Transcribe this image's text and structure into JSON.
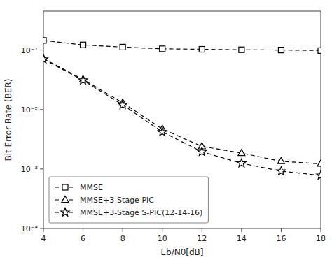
{
  "chart_data": {
    "type": "line",
    "x": [
      4,
      6,
      8,
      10,
      12,
      14,
      16,
      18
    ],
    "series": [
      {
        "name": "MMSE",
        "color": "#000000",
        "marker": "square",
        "line_style": "dashed",
        "values": [
          0.145,
          0.122,
          0.112,
          0.105,
          0.103,
          0.101,
          0.1,
          0.098
        ]
      },
      {
        "name": "MMSE+3-Stage PIC",
        "color": "#000000",
        "marker": "triangle",
        "line_style": "dashed",
        "values": [
          0.072,
          0.032,
          0.013,
          0.0047,
          0.0024,
          0.00185,
          0.00135,
          0.00122
        ]
      },
      {
        "name": "MMSE+3-Stage S-PIC(12-14-16)",
        "color": "#000000",
        "marker": "star",
        "line_style": "dashed",
        "values": [
          0.07,
          0.031,
          0.012,
          0.0042,
          0.00195,
          0.00125,
          0.00092,
          0.00078
        ]
      }
    ],
    "xlabel": "Eb/N0[dB]",
    "ylabel": "Bit Error Rate (BER)",
    "xlim": [
      4,
      18
    ],
    "ylim": [
      0.0001,
      0.45
    ],
    "xticks": [
      4,
      6,
      8,
      10,
      12,
      14,
      16,
      18
    ],
    "yticks": [
      {
        "value": 0.0001,
        "label": "10⁻⁴"
      },
      {
        "value": 0.001,
        "label": "10⁻³"
      },
      {
        "value": 0.01,
        "label": "10⁻²"
      },
      {
        "value": 0.1,
        "label": "10⁻¹"
      }
    ],
    "log": "y",
    "grid": false,
    "legend": "lower left"
  }
}
